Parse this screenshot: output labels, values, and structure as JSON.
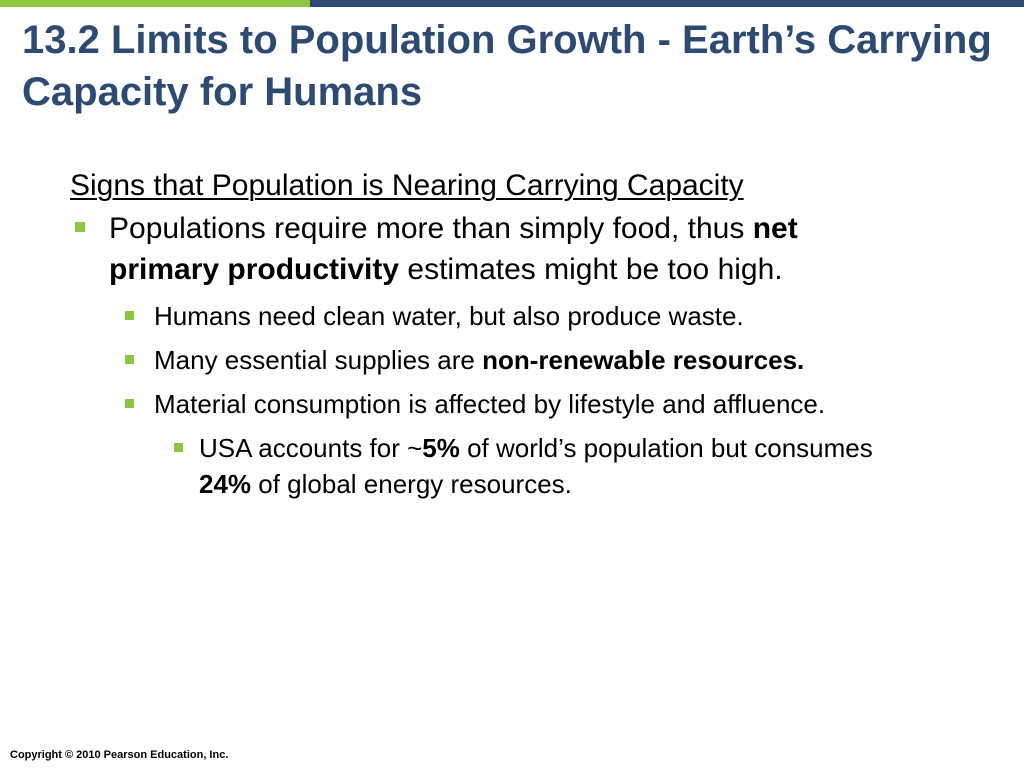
{
  "slide": {
    "title": "13.2 Limits to Population Growth - Earth’s Carrying Capacity for Humans",
    "subheading": "Signs that Population is Nearing Carrying Capacity",
    "bullet1": {
      "text_a": "Populations require more than simply food, thus ",
      "bold": "net primary productivity",
      "text_b": " estimates might be too high."
    },
    "sub_bullets": [
      {
        "text": "Humans need clean water, but also produce waste."
      },
      {
        "text_a": "Many essential supplies are ",
        "bold": "non-renewable resources."
      },
      {
        "text": "Material consumption is affected by lifestyle and affluence."
      }
    ],
    "sub_sub_bullet": {
      "text_a": "USA accounts for ~",
      "bold_a": "5%",
      "text_b": " of world’s population but consumes ",
      "bold_b": "24%",
      "text_c": " of global energy resources."
    },
    "footer": "Copyright © 2010 Pearson Education, Inc."
  },
  "colors": {
    "title": "#2d4a73",
    "accent_green": "#8dc63f",
    "accent_navy": "#2d4a73",
    "text": "#000000"
  }
}
